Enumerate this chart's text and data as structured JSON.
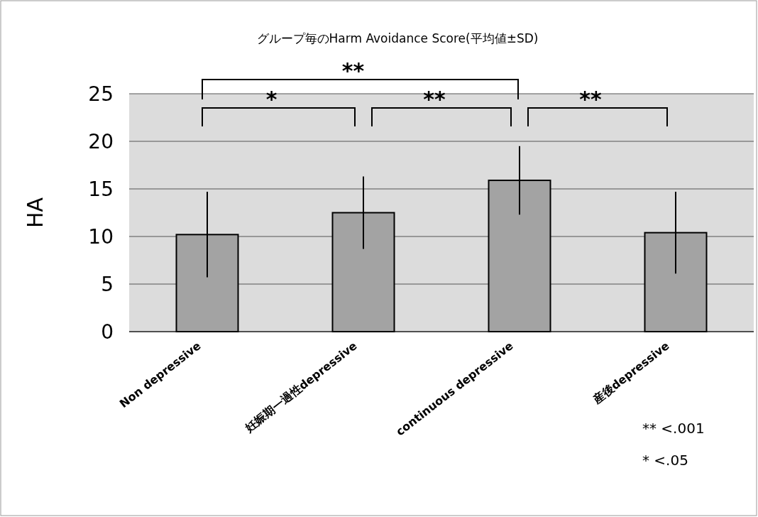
{
  "chart_data": {
    "type": "bar",
    "title": "グループ毎のHarm Avoidance Score(平均値±SD)",
    "ylabel": "HA",
    "categories": [
      "Non depressive",
      "妊娠期一過性depressive",
      "continuous depressive",
      "産後depressive"
    ],
    "values": [
      10.2,
      12.5,
      15.9,
      10.4
    ],
    "errors": [
      4.5,
      3.8,
      3.6,
      4.3
    ],
    "color": "#a3a3a3",
    "ylim": [
      0,
      25
    ],
    "yticks": [
      0,
      5,
      10,
      15,
      20,
      25
    ],
    "grid": "y",
    "annotations": [
      "**",
      "*",
      "**",
      "**",
      "** <.001",
      "*  <.05"
    ]
  }
}
